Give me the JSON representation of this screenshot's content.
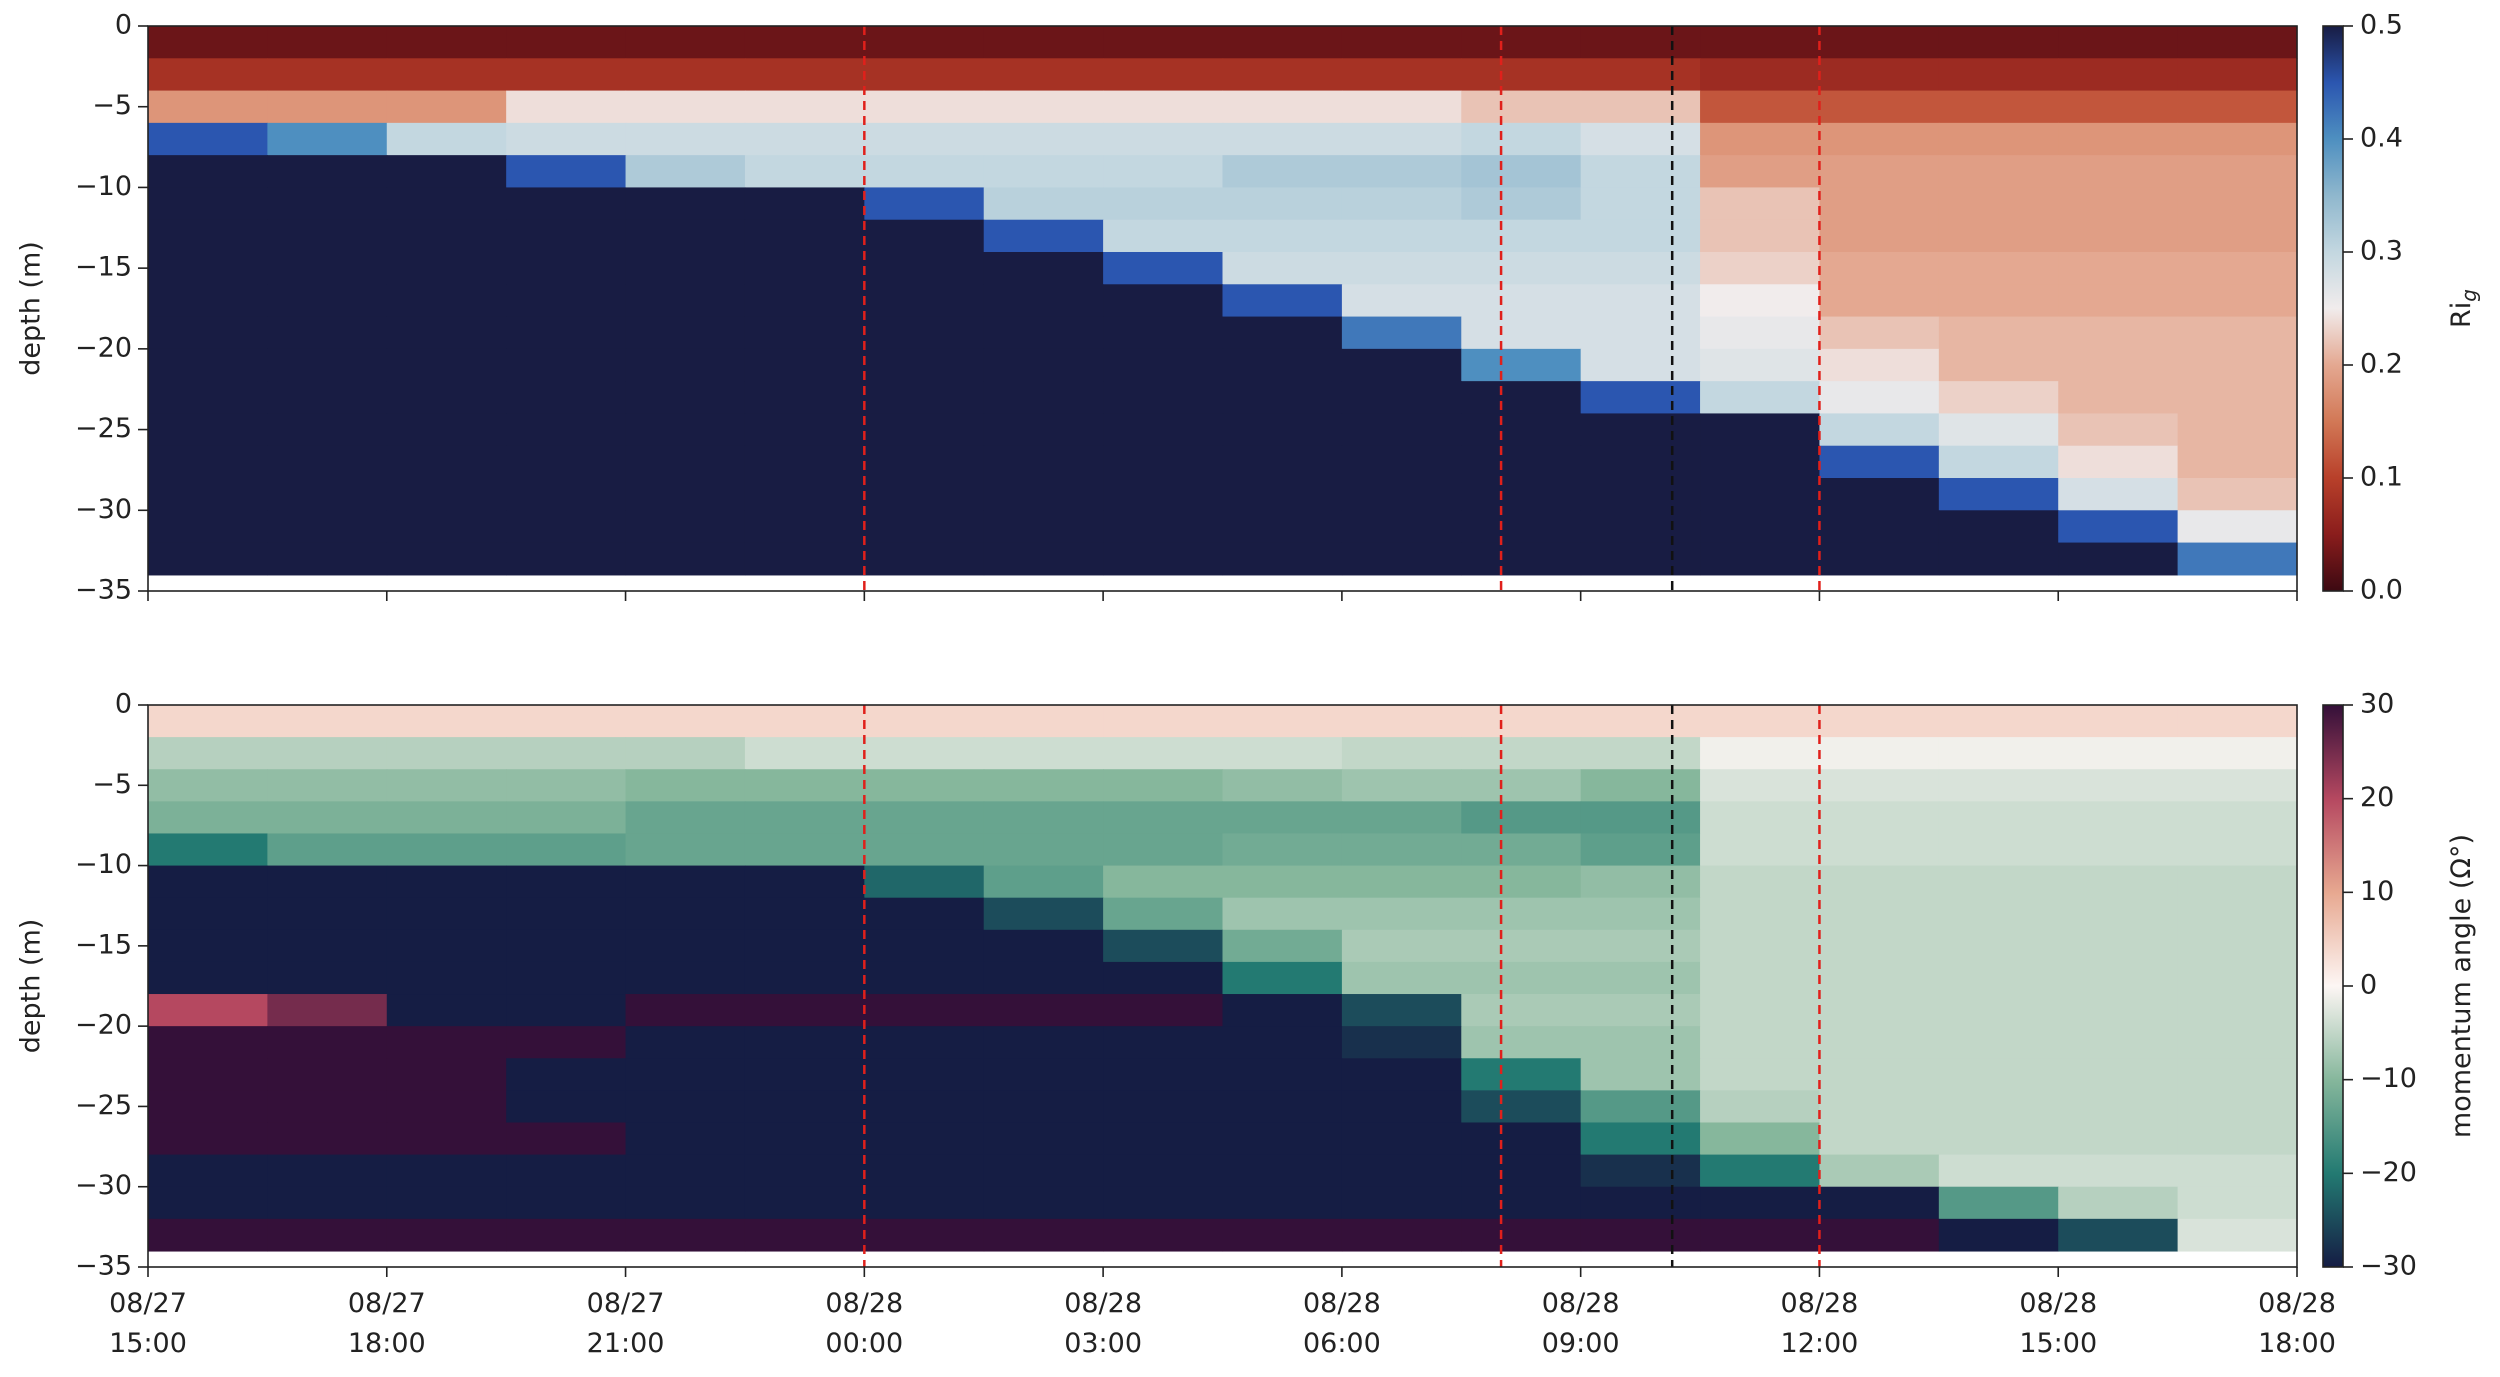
{
  "chart_data": [
    {
      "type": "heatmap",
      "y_label": "depth (m)",
      "colorbar_label": "Ri",
      "colorbar_label_sub": "g",
      "xlim": [
        0,
        27
      ],
      "ylim": [
        -35,
        0
      ],
      "xticks": [
        0,
        3,
        6,
        9,
        12,
        15,
        18,
        21,
        24,
        27
      ],
      "yticks": [
        0,
        {
          "value": -5,
          "label": "−5"
        },
        {
          "value": -10,
          "label": "−10"
        },
        {
          "value": -15,
          "label": "−15"
        },
        {
          "value": -20,
          "label": "−20"
        },
        {
          "value": -25,
          "label": "−25"
        },
        {
          "value": -30,
          "label": "−30"
        },
        {
          "value": -35,
          "label": "−35"
        }
      ],
      "clim": [
        0,
        0.5
      ],
      "cticks": [
        {
          "value": 0,
          "label": "0.0"
        },
        0.1,
        0.2,
        0.3,
        0.4,
        0.5
      ],
      "colormap": [
        "#3c0912",
        "#8a1d1c",
        "#b8402a",
        "#d27856",
        "#e4a891",
        "#f1ecec",
        "#c3d7e0",
        "#8fb7cd",
        "#4e8fc0",
        "#2b56b0",
        "#181c43"
      ],
      "vlines": [
        {
          "x": 9,
          "color": "#e0201b"
        },
        {
          "x": 17,
          "color": "#e0201b"
        },
        {
          "x": 19.15,
          "color": "#111111"
        },
        {
          "x": 21,
          "color": "#e0201b"
        }
      ],
      "x_edges": [
        0,
        1.5,
        3,
        4.5,
        6,
        7.5,
        9,
        10.5,
        12,
        13.5,
        15,
        16.5,
        18,
        19.5,
        21,
        22.5,
        24,
        25.5,
        27
      ],
      "y_edges": [
        0,
        -2,
        -4,
        -6,
        -8,
        -10,
        -12,
        -14,
        -16,
        -18,
        -20,
        -22,
        -24,
        -26,
        -28,
        -30,
        -32,
        -34
      ],
      "z": [
        [
          0.03,
          0.03,
          0.03,
          0.03,
          0.03,
          0.03,
          0.03,
          0.03,
          0.03,
          0.03,
          0.03,
          0.03,
          0.03,
          0.03,
          0.03,
          0.03,
          0.03,
          0.03
        ],
        [
          0.08,
          0.08,
          0.08,
          0.08,
          0.08,
          0.08,
          0.08,
          0.08,
          0.08,
          0.08,
          0.08,
          0.08,
          0.08,
          0.07,
          0.07,
          0.07,
          0.07,
          0.07
        ],
        [
          0.18,
          0.18,
          0.18,
          0.24,
          0.24,
          0.24,
          0.24,
          0.24,
          0.24,
          0.24,
          0.24,
          0.22,
          0.22,
          0.12,
          0.12,
          0.12,
          0.12,
          0.12
        ],
        [
          0.45,
          0.4,
          0.3,
          0.29,
          0.29,
          0.29,
          0.29,
          0.29,
          0.29,
          0.29,
          0.29,
          0.3,
          0.28,
          0.18,
          0.18,
          0.18,
          0.18,
          0.18
        ],
        [
          0.5,
          0.5,
          0.5,
          0.45,
          0.32,
          0.3,
          0.3,
          0.3,
          0.3,
          0.32,
          0.32,
          0.33,
          0.3,
          0.19,
          0.19,
          0.19,
          0.19,
          0.19
        ],
        [
          0.5,
          0.5,
          0.5,
          0.5,
          0.5,
          0.5,
          0.45,
          0.31,
          0.31,
          0.31,
          0.31,
          0.32,
          0.3,
          0.22,
          0.19,
          0.19,
          0.19,
          0.19
        ],
        [
          0.5,
          0.5,
          0.5,
          0.5,
          0.5,
          0.5,
          0.5,
          0.45,
          0.3,
          0.3,
          0.3,
          0.3,
          0.3,
          0.22,
          0.19,
          0.19,
          0.19,
          0.19
        ],
        [
          0.5,
          0.5,
          0.5,
          0.5,
          0.5,
          0.5,
          0.5,
          0.5,
          0.45,
          0.29,
          0.29,
          0.29,
          0.29,
          0.23,
          0.2,
          0.2,
          0.2,
          0.2
        ],
        [
          0.5,
          0.5,
          0.5,
          0.5,
          0.5,
          0.5,
          0.5,
          0.5,
          0.5,
          0.45,
          0.28,
          0.28,
          0.28,
          0.25,
          0.2,
          0.2,
          0.2,
          0.2
        ],
        [
          0.5,
          0.5,
          0.5,
          0.5,
          0.5,
          0.5,
          0.5,
          0.5,
          0.5,
          0.5,
          0.42,
          0.28,
          0.28,
          0.26,
          0.22,
          0.21,
          0.21,
          0.21
        ],
        [
          0.5,
          0.5,
          0.5,
          0.5,
          0.5,
          0.5,
          0.5,
          0.5,
          0.5,
          0.5,
          0.5,
          0.4,
          0.28,
          0.27,
          0.24,
          0.21,
          0.21,
          0.21
        ],
        [
          0.5,
          0.5,
          0.5,
          0.5,
          0.5,
          0.5,
          0.5,
          0.5,
          0.5,
          0.5,
          0.5,
          0.5,
          0.45,
          0.3,
          0.26,
          0.23,
          0.21,
          0.21
        ],
        [
          0.5,
          0.5,
          0.5,
          0.5,
          0.5,
          0.5,
          0.5,
          0.5,
          0.5,
          0.5,
          0.5,
          0.5,
          0.5,
          0.5,
          0.3,
          0.27,
          0.22,
          0.21
        ],
        [
          0.5,
          0.5,
          0.5,
          0.5,
          0.5,
          0.5,
          0.5,
          0.5,
          0.5,
          0.5,
          0.5,
          0.5,
          0.5,
          0.5,
          0.45,
          0.3,
          0.24,
          0.21
        ],
        [
          0.5,
          0.5,
          0.5,
          0.5,
          0.5,
          0.5,
          0.5,
          0.5,
          0.5,
          0.5,
          0.5,
          0.5,
          0.5,
          0.5,
          0.5,
          0.45,
          0.28,
          0.22
        ],
        [
          0.5,
          0.5,
          0.5,
          0.5,
          0.5,
          0.5,
          0.5,
          0.5,
          0.5,
          0.5,
          0.5,
          0.5,
          0.5,
          0.5,
          0.5,
          0.5,
          0.45,
          0.26
        ],
        [
          0.5,
          0.5,
          0.5,
          0.5,
          0.5,
          0.5,
          0.5,
          0.5,
          0.5,
          0.5,
          0.5,
          0.5,
          0.5,
          0.5,
          0.5,
          0.5,
          0.5,
          0.42
        ]
      ]
    },
    {
      "type": "heatmap",
      "y_label": "depth (m)",
      "colorbar_label": "momentum angle (Ω°)",
      "xlim": [
        0,
        27
      ],
      "ylim": [
        -35,
        0
      ],
      "xticks": [
        {
          "value": 0,
          "label": [
            "08/27",
            "15:00"
          ]
        },
        {
          "value": 3,
          "label": [
            "08/27",
            "18:00"
          ]
        },
        {
          "value": 6,
          "label": [
            "08/27",
            "21:00"
          ]
        },
        {
          "value": 9,
          "label": [
            "08/28",
            "00:00"
          ]
        },
        {
          "value": 12,
          "label": [
            "08/28",
            "03:00"
          ]
        },
        {
          "value": 15,
          "label": [
            "08/28",
            "06:00"
          ]
        },
        {
          "value": 18,
          "label": [
            "08/28",
            "09:00"
          ]
        },
        {
          "value": 21,
          "label": [
            "08/28",
            "12:00"
          ]
        },
        {
          "value": 24,
          "label": [
            "08/28",
            "15:00"
          ]
        },
        {
          "value": 27,
          "label": [
            "08/28",
            "18:00"
          ]
        }
      ],
      "yticks": [
        0,
        {
          "value": -5,
          "label": "−5"
        },
        {
          "value": -10,
          "label": "−10"
        },
        {
          "value": -15,
          "label": "−15"
        },
        {
          "value": -20,
          "label": "−20"
        },
        {
          "value": -25,
          "label": "−25"
        },
        {
          "value": -30,
          "label": "−30"
        },
        {
          "value": -35,
          "label": "−35"
        }
      ],
      "clim": [
        -30,
        30
      ],
      "cticks": [
        {
          "value": -30,
          "label": "−30"
        },
        {
          "value": -20,
          "label": "−20"
        },
        {
          "value": -10,
          "label": "−10"
        },
        0,
        10,
        20,
        30
      ],
      "colormap": [
        "#151d44",
        "#237a72",
        "#86b79c",
        "#fdf6f4",
        "#e7a890",
        "#b54860",
        "#341039"
      ],
      "vlines": [
        {
          "x": 9,
          "color": "#e0201b"
        },
        {
          "x": 17,
          "color": "#e0201b"
        },
        {
          "x": 19.15,
          "color": "#111111"
        },
        {
          "x": 21,
          "color": "#e0201b"
        }
      ],
      "x_edges": [
        0,
        1.5,
        3,
        4.5,
        6,
        7.5,
        9,
        10.5,
        12,
        13.5,
        15,
        16.5,
        18,
        19.5,
        21,
        22.5,
        24,
        25.5,
        27
      ],
      "y_edges": [
        0,
        -2,
        -4,
        -6,
        -8,
        -10,
        -12,
        -14,
        -16,
        -18,
        -20,
        -22,
        -24,
        -26,
        -28,
        -30,
        -32,
        -34
      ],
      "z": [
        [
          4,
          4,
          4,
          4,
          4,
          4,
          4,
          4,
          4,
          4,
          4,
          4,
          4,
          4,
          4,
          4,
          4,
          4
        ],
        [
          -6,
          -6,
          -6,
          -6,
          -6,
          -4,
          -4,
          -4,
          -4,
          -4,
          -5,
          -5,
          -5,
          -1,
          -1,
          -1,
          -1,
          -1
        ],
        [
          -9,
          -9,
          -9,
          -9,
          -10,
          -10,
          -10,
          -10,
          -10,
          -9,
          -8,
          -8,
          -10,
          -3,
          -3,
          -3,
          -3,
          -3
        ],
        [
          -11,
          -11,
          -11,
          -11,
          -13,
          -13,
          -13,
          -13,
          -13,
          -13,
          -13,
          -15,
          -15,
          -4,
          -4,
          -4,
          -4,
          -4
        ],
        [
          -20,
          -14,
          -14,
          -14,
          -13,
          -13,
          -13,
          -13,
          -13,
          -12,
          -12,
          -12,
          -14,
          -4,
          -4,
          -4,
          -4,
          -4
        ],
        [
          -30,
          -30,
          -30,
          -30,
          -30,
          -30,
          -22,
          -14,
          -10,
          -10,
          -10,
          -10,
          -9,
          -5,
          -5,
          -5,
          -5,
          -5
        ],
        [
          -30,
          -30,
          -30,
          -30,
          -30,
          -30,
          -30,
          -25,
          -13,
          -8,
          -8,
          -8,
          -8,
          -5,
          -5,
          -5,
          -5,
          -5
        ],
        [
          -30,
          -30,
          -30,
          -30,
          -30,
          -30,
          -30,
          -30,
          -25,
          -12,
          -7,
          -7,
          -7,
          -5,
          -5,
          -5,
          -5,
          -5
        ],
        [
          -30,
          -30,
          -30,
          -30,
          -30,
          -30,
          -30,
          -30,
          -30,
          -20,
          -8,
          -8,
          -8,
          -5,
          -5,
          -5,
          -5,
          -5
        ],
        [
          20,
          25,
          -30,
          -30,
          30,
          30,
          30,
          30,
          30,
          -30,
          -25,
          -7,
          -7,
          -5,
          -5,
          -5,
          -5,
          -5
        ],
        [
          30,
          30,
          30,
          30,
          -30,
          -30,
          -30,
          -30,
          -30,
          -30,
          -28,
          -8,
          -8,
          -5,
          -5,
          -5,
          -5,
          -5
        ],
        [
          30,
          30,
          30,
          -30,
          -30,
          -30,
          -30,
          -30,
          -30,
          -30,
          -30,
          -20,
          -8,
          -5,
          -5,
          -5,
          -5,
          -5
        ],
        [
          30,
          30,
          30,
          -30,
          -30,
          -30,
          -30,
          -30,
          -30,
          -30,
          -30,
          -25,
          -15,
          -6,
          -5,
          -5,
          -5,
          -5
        ],
        [
          30,
          30,
          30,
          30,
          -30,
          -30,
          -30,
          -30,
          -30,
          -30,
          -30,
          -30,
          -20,
          -10,
          -5,
          -5,
          -5,
          -5
        ],
        [
          -30,
          -30,
          -30,
          -30,
          -30,
          -30,
          -30,
          -30,
          -30,
          -30,
          -30,
          -30,
          -28,
          -20,
          -7,
          -4,
          -4,
          -4
        ],
        [
          -30,
          -30,
          -30,
          -30,
          -30,
          -30,
          -30,
          -30,
          -30,
          -30,
          -30,
          -30,
          -30,
          -30,
          -30,
          -15,
          -6,
          -4
        ],
        [
          30,
          30,
          30,
          30,
          30,
          30,
          30,
          30,
          30,
          30,
          30,
          30,
          30,
          30,
          30,
          -30,
          -25,
          -3
        ]
      ]
    }
  ]
}
